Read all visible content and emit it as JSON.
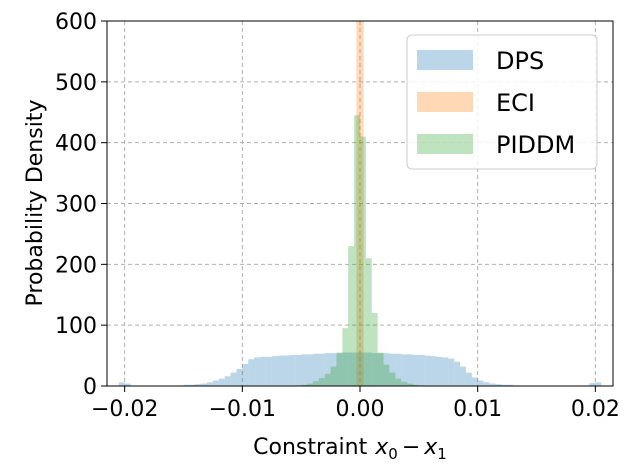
{
  "chart_data": {
    "type": "histogram",
    "xlabel": "Constraint",
    "xlabel_math": "x0 − x1",
    "ylabel": "Probability Density",
    "xlim": [
      -0.0215,
      0.0215
    ],
    "ylim": [
      0,
      600
    ],
    "xticks": [
      -0.02,
      -0.01,
      0.0,
      0.01,
      0.02
    ],
    "xtick_labels": [
      "−0.02",
      "−0.01",
      "0.00",
      "0.01",
      "0.02"
    ],
    "yticks": [
      0,
      100,
      200,
      300,
      400,
      500,
      600
    ],
    "ytick_labels": [
      "0",
      "100",
      "200",
      "300",
      "400",
      "500",
      "600"
    ],
    "grid": true,
    "legend_position": "top-right",
    "series": [
      {
        "name": "DPS",
        "color": "#1f77b4",
        "alpha": 0.3,
        "bins": [
          [
            -0.0205,
            -0.02,
            6
          ],
          [
            -0.02,
            -0.0195,
            4
          ],
          [
            -0.0155,
            -0.015,
            1
          ],
          [
            -0.015,
            -0.0145,
            2
          ],
          [
            -0.0145,
            -0.014,
            2
          ],
          [
            -0.014,
            -0.0135,
            3
          ],
          [
            -0.0135,
            -0.013,
            4
          ],
          [
            -0.013,
            -0.0125,
            6
          ],
          [
            -0.0125,
            -0.012,
            9
          ],
          [
            -0.012,
            -0.0115,
            12
          ],
          [
            -0.0115,
            -0.011,
            16
          ],
          [
            -0.011,
            -0.0105,
            22
          ],
          [
            -0.0105,
            -0.01,
            28
          ],
          [
            -0.01,
            -0.0095,
            36
          ],
          [
            -0.0095,
            -0.009,
            44
          ],
          [
            -0.009,
            -0.0085,
            47
          ],
          [
            -0.0085,
            -0.008,
            48
          ],
          [
            -0.008,
            -0.0075,
            48
          ],
          [
            -0.0075,
            -0.007,
            49
          ],
          [
            -0.007,
            -0.0065,
            50
          ],
          [
            -0.0065,
            -0.006,
            50
          ],
          [
            -0.006,
            -0.0055,
            51
          ],
          [
            -0.0055,
            -0.005,
            51
          ],
          [
            -0.005,
            -0.0045,
            52
          ],
          [
            -0.0045,
            -0.004,
            52
          ],
          [
            -0.004,
            -0.0035,
            53
          ],
          [
            -0.0035,
            -0.003,
            53
          ],
          [
            -0.003,
            -0.0025,
            54
          ],
          [
            -0.0025,
            -0.002,
            54
          ],
          [
            -0.002,
            -0.0015,
            54
          ],
          [
            -0.0015,
            -0.001,
            55
          ],
          [
            -0.001,
            -0.0005,
            55
          ],
          [
            -0.0005,
            0.0,
            55
          ],
          [
            0.0,
            0.0005,
            55
          ],
          [
            0.0005,
            0.001,
            55
          ],
          [
            0.001,
            0.0015,
            54
          ],
          [
            0.0015,
            0.002,
            54
          ],
          [
            0.002,
            0.0025,
            54
          ],
          [
            0.0025,
            0.003,
            53
          ],
          [
            0.003,
            0.0035,
            53
          ],
          [
            0.0035,
            0.004,
            52
          ],
          [
            0.004,
            0.0045,
            52
          ],
          [
            0.0045,
            0.005,
            51
          ],
          [
            0.005,
            0.0055,
            51
          ],
          [
            0.0055,
            0.006,
            50
          ],
          [
            0.006,
            0.0065,
            49
          ],
          [
            0.0065,
            0.007,
            48
          ],
          [
            0.007,
            0.0075,
            47
          ],
          [
            0.0075,
            0.008,
            45
          ],
          [
            0.008,
            0.0085,
            40
          ],
          [
            0.0085,
            0.009,
            32
          ],
          [
            0.009,
            0.0095,
            22
          ],
          [
            0.0095,
            0.01,
            14
          ],
          [
            0.01,
            0.0105,
            9
          ],
          [
            0.0105,
            0.011,
            6
          ],
          [
            0.011,
            0.0115,
            4
          ],
          [
            0.0115,
            0.012,
            3
          ],
          [
            0.012,
            0.0125,
            2
          ],
          [
            0.0125,
            0.013,
            2
          ],
          [
            0.013,
            0.0135,
            1
          ],
          [
            0.0195,
            0.02,
            5
          ],
          [
            0.02,
            0.0205,
            6
          ]
        ]
      },
      {
        "name": "ECI",
        "color": "#ff7f0e",
        "alpha": 0.3,
        "bins": [
          [
            -0.0003,
            0.0,
            600
          ],
          [
            0.0,
            0.0003,
            600
          ]
        ]
      },
      {
        "name": "PIDDM",
        "color": "#2ca02c",
        "alpha": 0.3,
        "bins": [
          [
            -0.005,
            -0.0045,
            2
          ],
          [
            -0.0045,
            -0.004,
            4
          ],
          [
            -0.004,
            -0.0035,
            8
          ],
          [
            -0.0035,
            -0.003,
            13
          ],
          [
            -0.003,
            -0.0025,
            20
          ],
          [
            -0.0025,
            -0.002,
            32
          ],
          [
            -0.002,
            -0.0015,
            55
          ],
          [
            -0.0015,
            -0.001,
            95
          ],
          [
            -0.001,
            -0.0005,
            230
          ],
          [
            -0.0005,
            0.0,
            445
          ],
          [
            0.0,
            0.0005,
            410
          ],
          [
            0.0005,
            0.001,
            210
          ],
          [
            0.001,
            0.0015,
            120
          ],
          [
            0.0015,
            0.002,
            55
          ],
          [
            0.002,
            0.0025,
            35
          ],
          [
            0.0025,
            0.003,
            22
          ],
          [
            0.003,
            0.0035,
            12
          ],
          [
            0.0035,
            0.004,
            7
          ],
          [
            0.004,
            0.0045,
            4
          ],
          [
            0.0045,
            0.005,
            2
          ]
        ]
      }
    ]
  }
}
